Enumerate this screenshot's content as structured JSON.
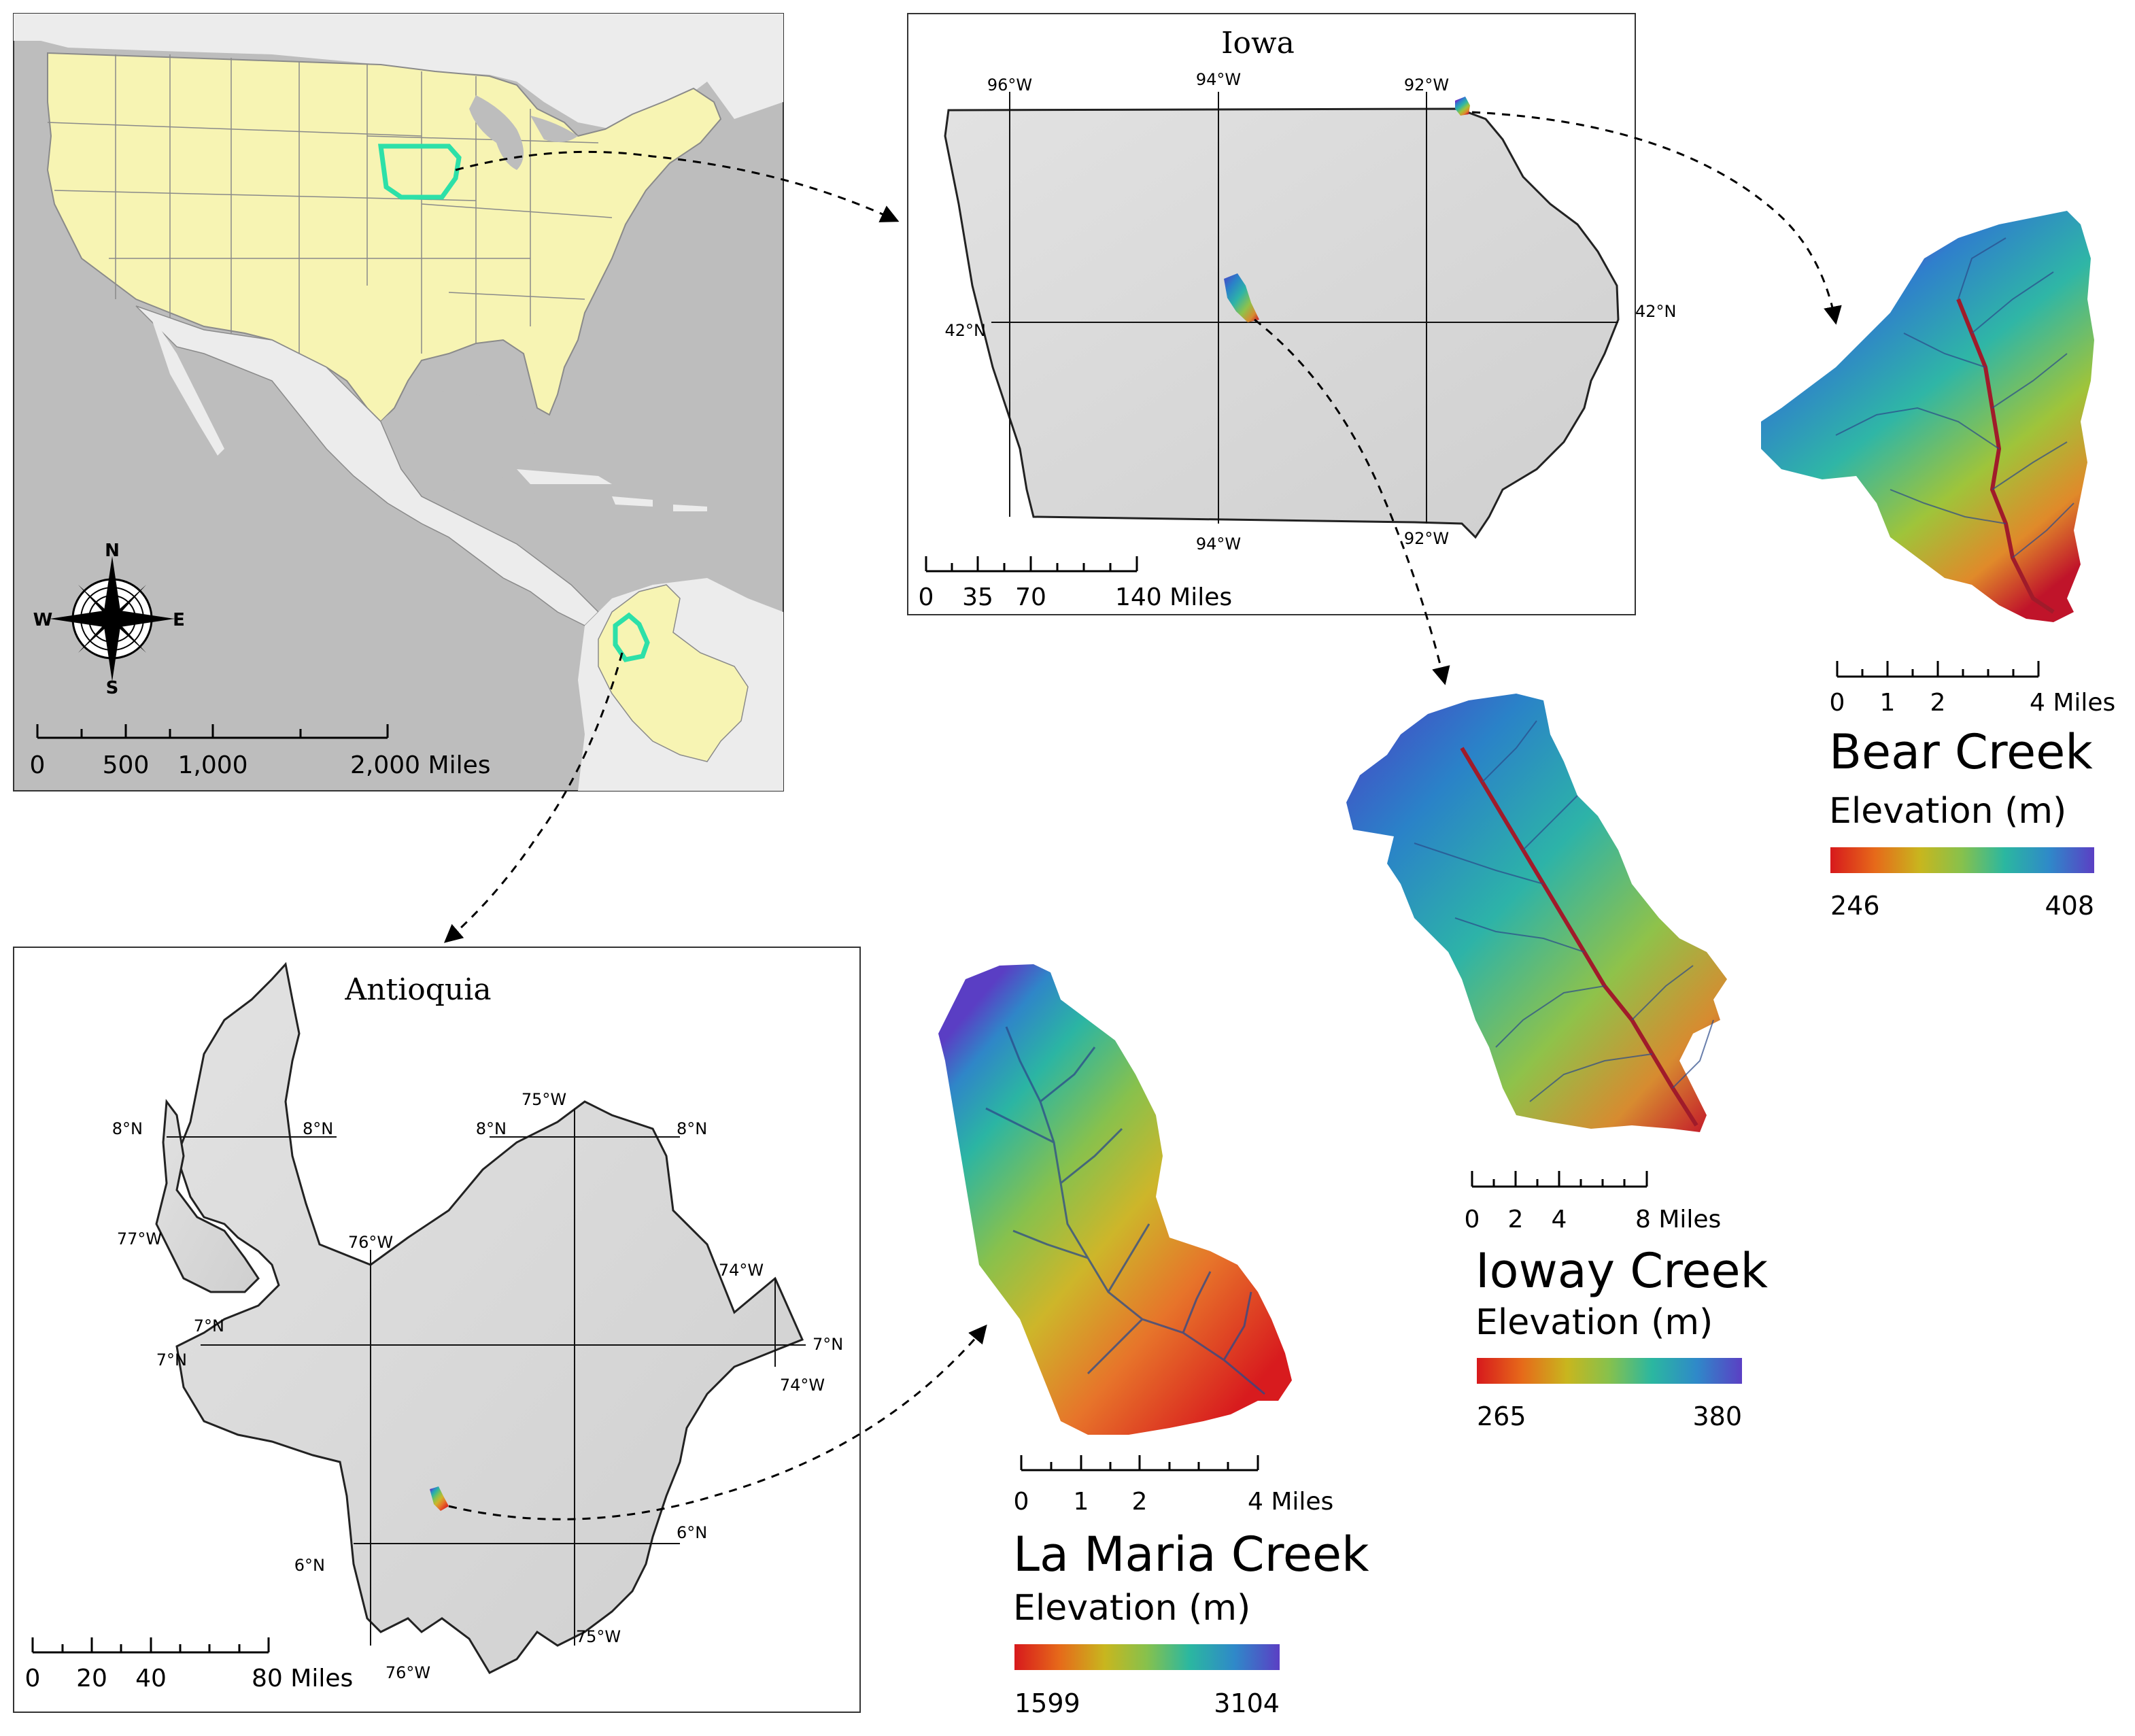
{
  "usa_panel": {
    "compass": {
      "n": "N",
      "s": "S",
      "e": "E",
      "w": "W"
    },
    "scale": {
      "ticks": [
        "0",
        "500",
        "1,000",
        "2,000 Miles"
      ]
    }
  },
  "iowa_panel": {
    "title": "Iowa",
    "lon_top": [
      "96°W",
      "94°W",
      "92°W"
    ],
    "lon_bottom": [
      "94°W",
      "92°W"
    ],
    "lat": [
      "42°N",
      "42°N"
    ],
    "scale": {
      "ticks": [
        "0",
        "35",
        "70",
        "140 Miles"
      ]
    }
  },
  "antioquia_panel": {
    "title": "Antioquia",
    "labels": {
      "lat8_left": "8°N",
      "lat8_mid": "8°N",
      "lat8_mid2": "8°N",
      "lat8_right": "8°N",
      "lat7_left_a": "7°N",
      "lat7_left_b": "7°N",
      "lat7_right": "7°N",
      "lat6_left": "6°N",
      "lat6_right": "6°N",
      "lon77": "77°W",
      "lon76_top": "76°W",
      "lon76_bottom": "76°W",
      "lon75_top": "75°W",
      "lon75_bottom": "75°W",
      "lon74_top": "74°W",
      "lon74_bottom": "74°W"
    },
    "scale": {
      "ticks": [
        "0",
        "20",
        "40",
        "80 Miles"
      ]
    }
  },
  "watersheds": {
    "bear": {
      "name": "Bear Creek",
      "legend_title": "Elevation (m)",
      "min": "246",
      "max": "408",
      "scale": {
        "ticks": [
          "0",
          "1",
          "2",
          "4 Miles"
        ]
      }
    },
    "ioway": {
      "name": "Ioway Creek",
      "legend_title": "Elevation (m)",
      "min": "265",
      "max": "380",
      "scale": {
        "ticks": [
          "0",
          "2",
          "4",
          "8 Miles"
        ]
      }
    },
    "lamaria": {
      "name": "La Maria Creek",
      "legend_title": "Elevation (m)",
      "min": "1599",
      "max": "3104",
      "scale": {
        "ticks": [
          "0",
          "1",
          "2",
          "4 Miles"
        ]
      }
    }
  },
  "colors": {
    "ocean": "#bdbdbd",
    "land_focus": "#f7f4b3",
    "land_other": "#ececec",
    "highlight": "#2de0a8",
    "ramp": [
      "#d7191c",
      "#e66a1a",
      "#c8b61e",
      "#86c14d",
      "#2bb7a0",
      "#2f89c9",
      "#5b3fc4"
    ]
  }
}
